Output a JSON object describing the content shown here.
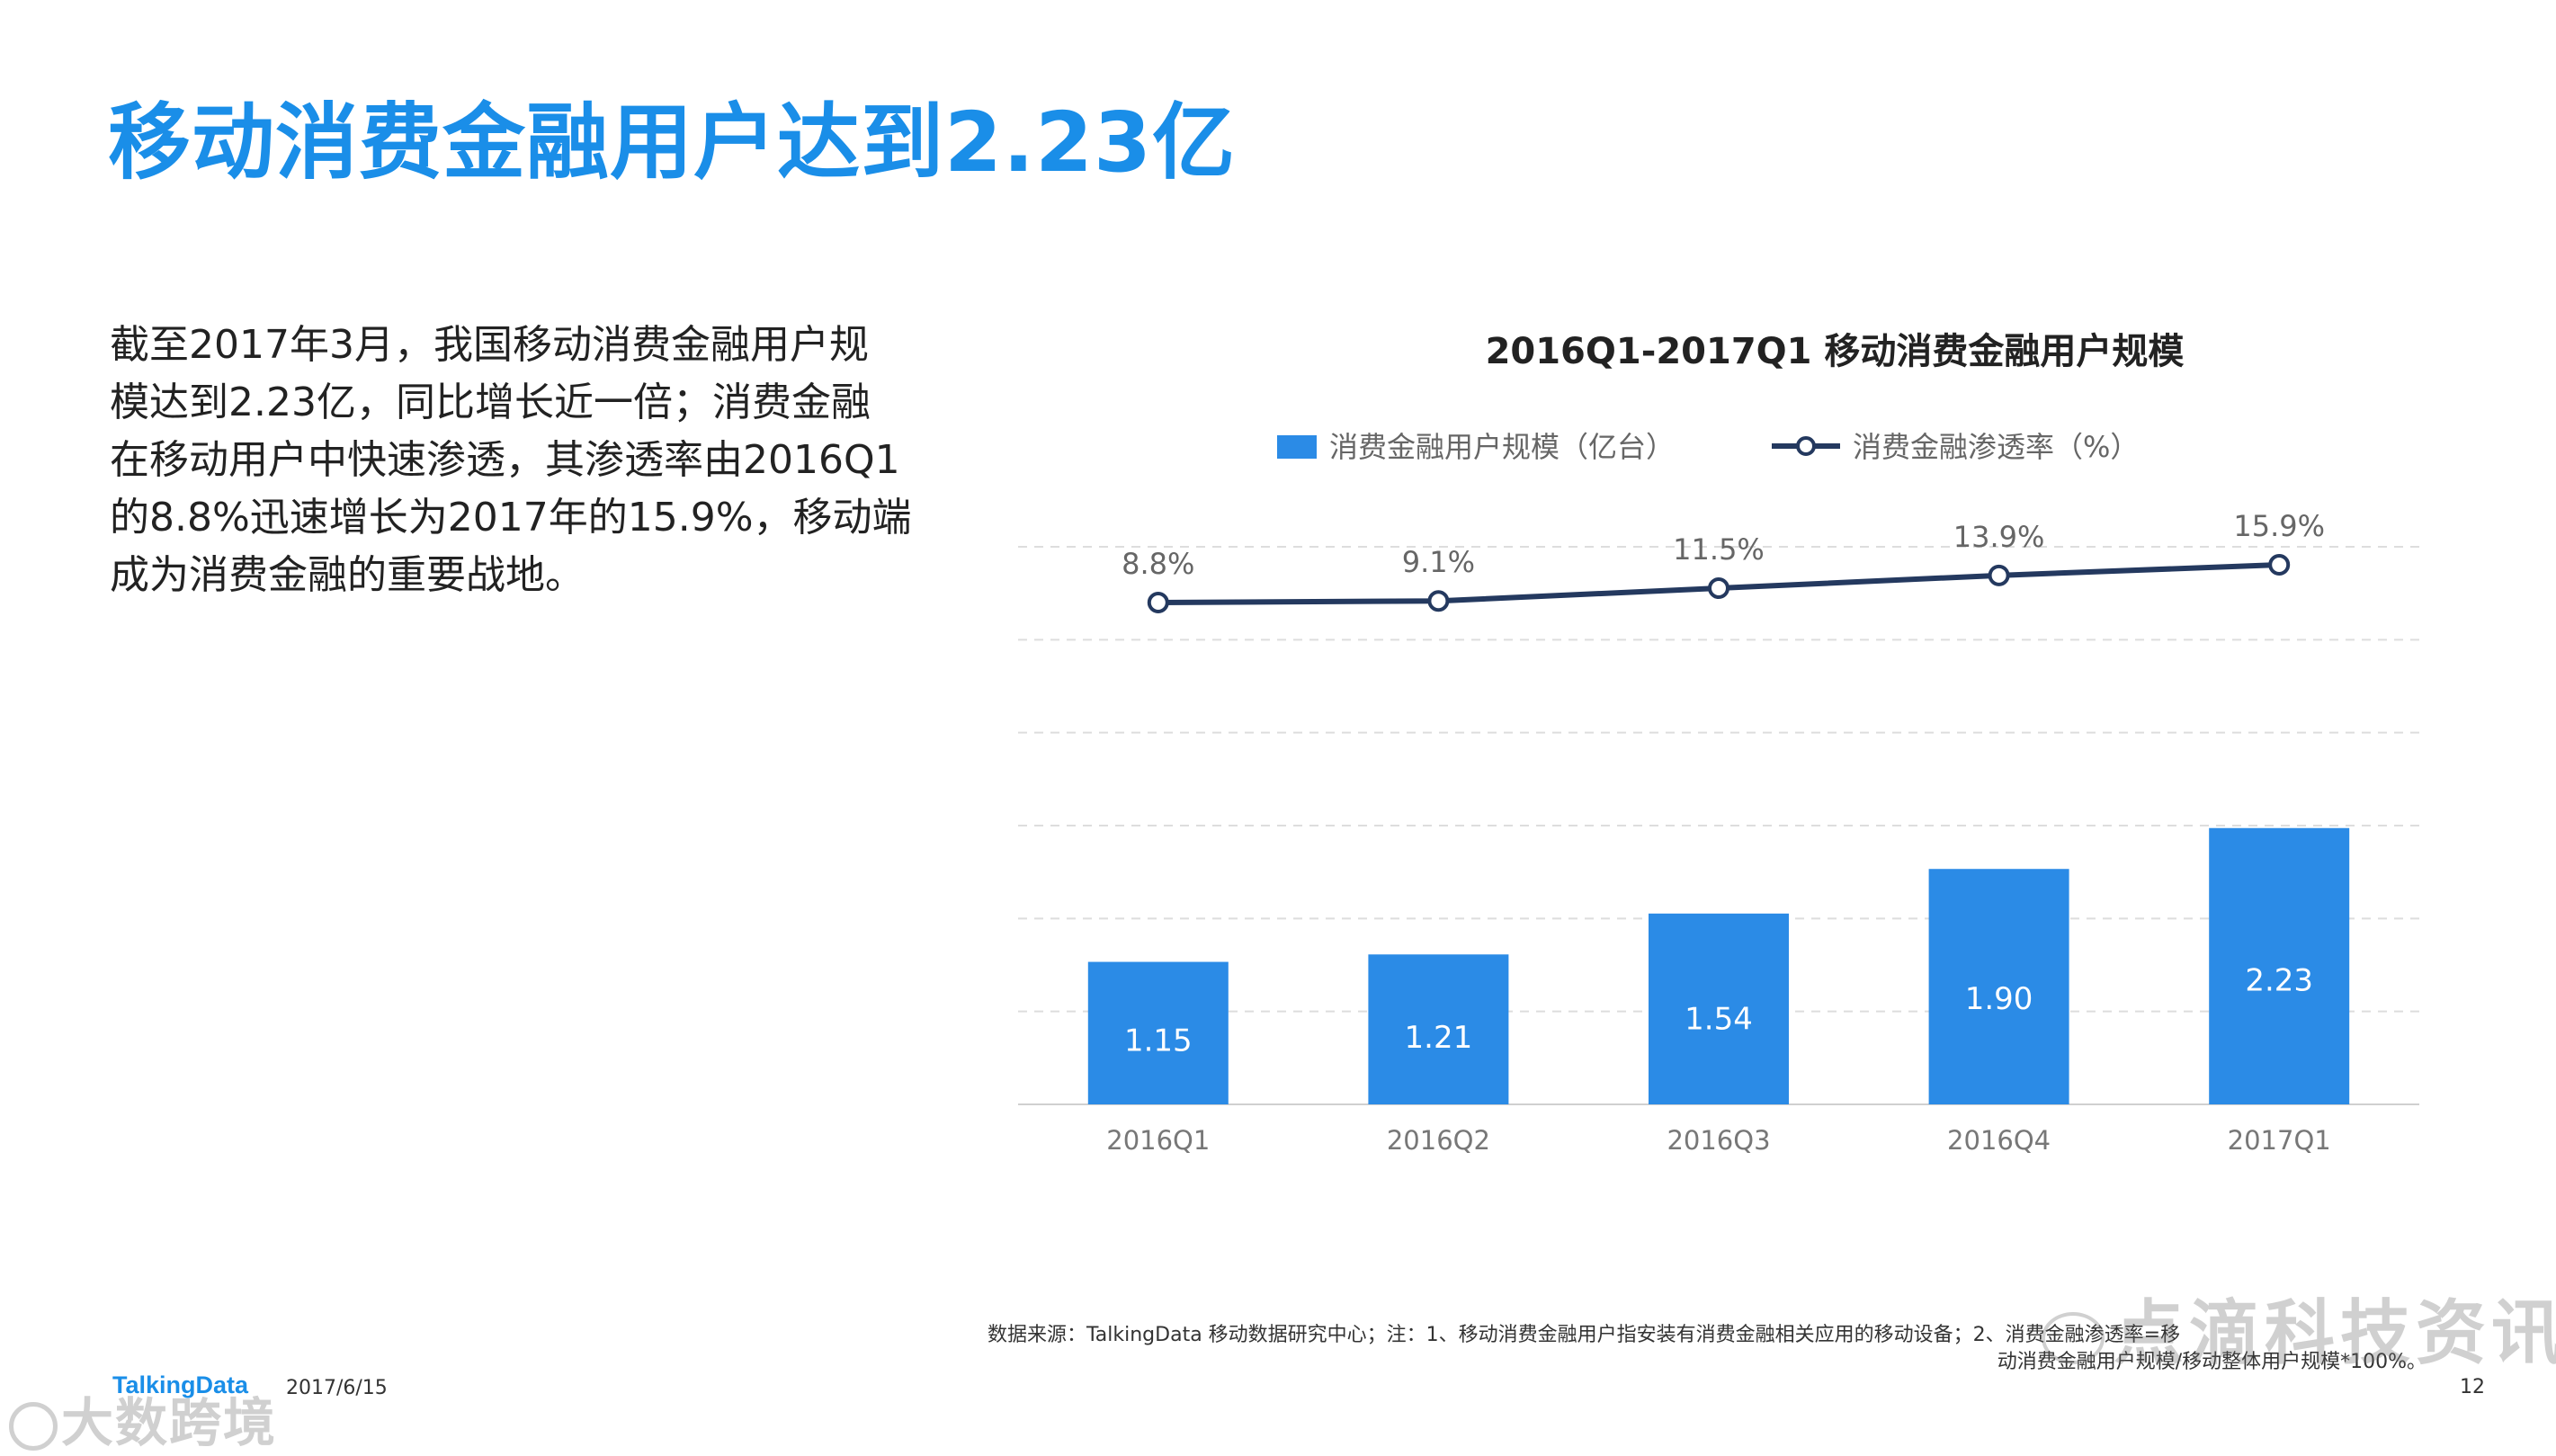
{
  "page": {
    "title": "移动消费金融用户达到2.23亿",
    "body_lines": [
      "截至2017年3月，我国移动消费金融用户规",
      "模达到2.23亿，同比增长近一倍；消费金融",
      "在移动用户中快速渗透，其渗透率由2016Q1",
      "的8.8%迅速增长为2017年的15.9%，移动端",
      "成为消费金融的重要战地。"
    ],
    "source_line1": "数据来源：TalkingData 移动数据研究中心；注：1、移动消费金融用户指安装有消费金融相关应用的移动设备；2、消费金融渗透率=移",
    "source_line2": "动消费金融用户规模/移动整体用户规模*100%。",
    "page_number": "12",
    "brand": "TalkingData",
    "date": "2017/6/15",
    "watermark_left": "大数跨境",
    "watermark_right": "点滴科技资讯"
  },
  "chart_data": {
    "type": "bar",
    "title": "2016Q1-2017Q1  移动消费金融用户规模",
    "categories": [
      "2016Q1",
      "2016Q2",
      "2016Q3",
      "2016Q4",
      "2017Q1"
    ],
    "series": [
      {
        "name": "消费金融用户规模（亿台）",
        "type": "bar",
        "values": [
          1.15,
          1.21,
          1.54,
          1.9,
          2.23
        ],
        "labels": [
          "1.15",
          "1.21",
          "1.54",
          "1.90",
          "2.23"
        ],
        "color": "#2b8be6"
      },
      {
        "name": "消费金融渗透率（%）",
        "type": "line",
        "values": [
          8.8,
          9.1,
          11.5,
          13.9,
          15.9
        ],
        "labels": [
          "8.8%",
          "9.1%",
          "11.5%",
          "13.9%",
          "15.9%"
        ],
        "color": "#24395f"
      }
    ],
    "ylim_bar": [
      0,
      4.5
    ],
    "gridlines": true,
    "legend_position": "top"
  }
}
